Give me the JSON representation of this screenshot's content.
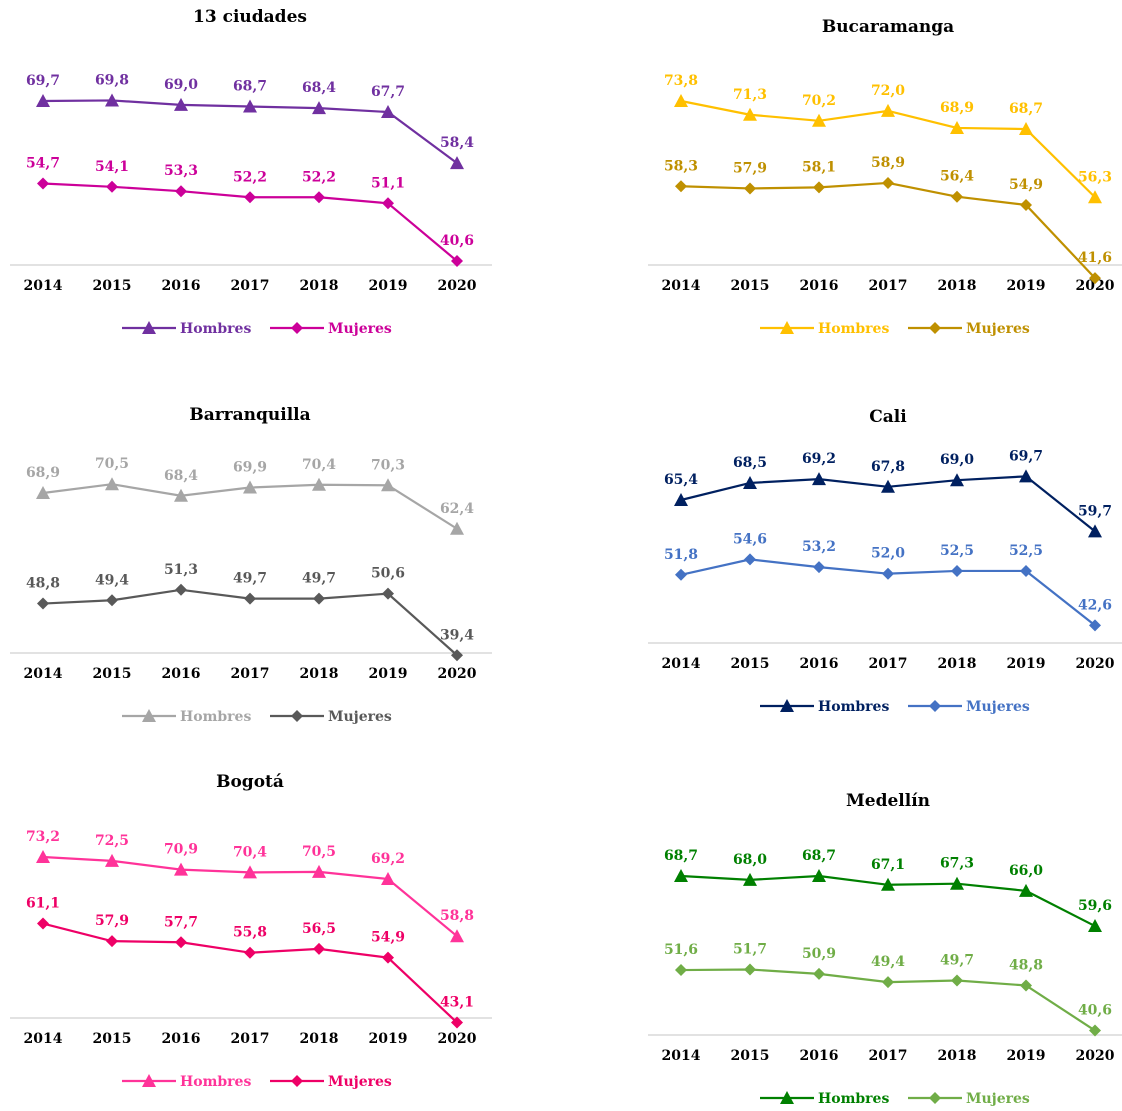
{
  "chart_data": [
    {
      "type": "line",
      "title": "13 ciudades",
      "x": [
        "2014",
        "2015",
        "2016",
        "2017",
        "2018",
        "2019",
        "2020"
      ],
      "series": [
        {
          "name": "Hombres",
          "marker": "triangle",
          "color": "#7030a0",
          "values": [
            69.7,
            69.8,
            69.0,
            68.7,
            68.4,
            67.7,
            58.4
          ],
          "labels": [
            "69,7",
            "69,8",
            "69,0",
            "68,7",
            "68,4",
            "67,7",
            "58,4"
          ]
        },
        {
          "name": "Mujeres",
          "marker": "diamond",
          "color": "#cc0099",
          "values": [
            54.7,
            54.1,
            53.3,
            52.2,
            52.2,
            51.1,
            40.6
          ],
          "labels": [
            "54,7",
            "54,1",
            "53,3",
            "52,2",
            "52,2",
            "51,1",
            "40,6"
          ]
        }
      ]
    },
    {
      "type": "line",
      "title": "Bucaramanga",
      "x": [
        "2014",
        "2015",
        "2016",
        "2017",
        "2018",
        "2019",
        "2020"
      ],
      "series": [
        {
          "name": "Hombres",
          "marker": "triangle",
          "color": "#ffc000",
          "values": [
            73.8,
            71.3,
            70.2,
            72.0,
            68.9,
            68.7,
            56.3
          ],
          "labels": [
            "73,8",
            "71,3",
            "70,2",
            "72,0",
            "68,9",
            "68,7",
            "56,3"
          ]
        },
        {
          "name": "Mujeres",
          "marker": "diamond",
          "color": "#bf9000",
          "values": [
            58.3,
            57.9,
            58.1,
            58.9,
            56.4,
            54.9,
            41.6
          ],
          "labels": [
            "58,3",
            "57,9",
            "58,1",
            "58,9",
            "56,4",
            "54,9",
            "41,6"
          ]
        }
      ]
    },
    {
      "type": "line",
      "title": "Barranquilla",
      "x": [
        "2014",
        "2015",
        "2016",
        "2017",
        "2018",
        "2019",
        "2020"
      ],
      "series": [
        {
          "name": "Hombres",
          "marker": "triangle",
          "color": "#a6a6a6",
          "values": [
            68.9,
            70.5,
            68.4,
            69.9,
            70.4,
            70.3,
            62.4
          ],
          "labels": [
            "68,9",
            "70,5",
            "68,4",
            "69,9",
            "70,4",
            "70,3",
            "62,4"
          ]
        },
        {
          "name": "Mujeres",
          "marker": "diamond",
          "color": "#595959",
          "values": [
            48.8,
            49.4,
            51.3,
            49.7,
            49.7,
            50.6,
            39.4
          ],
          "labels": [
            "48,8",
            "49,4",
            "51,3",
            "49,7",
            "49,7",
            "50,6",
            "39,4"
          ]
        }
      ]
    },
    {
      "type": "line",
      "title": "Cali",
      "x": [
        "2014",
        "2015",
        "2016",
        "2017",
        "2018",
        "2019",
        "2020"
      ],
      "series": [
        {
          "name": "Hombres",
          "marker": "triangle",
          "color": "#002060",
          "values": [
            65.4,
            68.5,
            69.2,
            67.8,
            69.0,
            69.7,
            59.7
          ],
          "labels": [
            "65,4",
            "68,5",
            "69,2",
            "67,8",
            "69,0",
            "69,7",
            "59,7"
          ]
        },
        {
          "name": "Mujeres",
          "marker": "diamond",
          "color": "#4472c4",
          "values": [
            51.8,
            54.6,
            53.2,
            52.0,
            52.5,
            52.5,
            42.6
          ],
          "labels": [
            "51,8",
            "54,6",
            "53,2",
            "52,0",
            "52,5",
            "52,5",
            "42,6"
          ]
        }
      ]
    },
    {
      "type": "line",
      "title": "Bogotá",
      "x": [
        "2014",
        "2015",
        "2016",
        "2017",
        "2018",
        "2019",
        "2020"
      ],
      "series": [
        {
          "name": "Hombres",
          "marker": "triangle",
          "color": "#ff3399",
          "values": [
            73.2,
            72.5,
            70.9,
            70.4,
            70.5,
            69.2,
            58.8
          ],
          "labels": [
            "73,2",
            "72,5",
            "70,9",
            "70,4",
            "70,5",
            "69,2",
            "58,8"
          ]
        },
        {
          "name": "Mujeres",
          "marker": "diamond",
          "color": "#ee0066",
          "values": [
            61.1,
            57.9,
            57.7,
            55.8,
            56.5,
            54.9,
            43.1
          ],
          "labels": [
            "61,1",
            "57,9",
            "57,7",
            "55,8",
            "56,5",
            "54,9",
            "43,1"
          ]
        }
      ]
    },
    {
      "type": "line",
      "title": "Medellín",
      "x": [
        "2014",
        "2015",
        "2016",
        "2017",
        "2018",
        "2019",
        "2020"
      ],
      "series": [
        {
          "name": "Hombres",
          "marker": "triangle",
          "color": "#008000",
          "values": [
            68.7,
            68.0,
            68.7,
            67.1,
            67.3,
            66.0,
            59.6
          ],
          "labels": [
            "68,7",
            "68,0",
            "68,7",
            "67,1",
            "67,3",
            "66,0",
            "59,6"
          ]
        },
        {
          "name": "Mujeres",
          "marker": "diamond",
          "color": "#70ad47",
          "values": [
            51.6,
            51.7,
            50.9,
            49.4,
            49.7,
            48.8,
            40.6
          ],
          "labels": [
            "51,6",
            "51,7",
            "50,9",
            "49,4",
            "49,7",
            "48,8",
            "40,6"
          ]
        }
      ]
    }
  ]
}
